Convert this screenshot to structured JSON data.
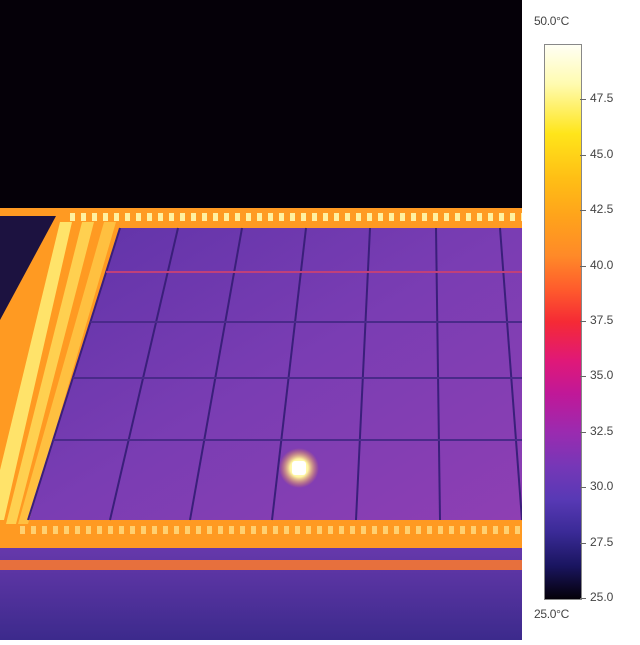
{
  "scale": {
    "max_label": "50.0°C",
    "min_label": "25.0°C",
    "range": [
      25.0,
      50.0
    ],
    "ticks": [
      "47.5",
      "45.0",
      "42.5",
      "40.0",
      "37.5",
      "35.0",
      "32.5",
      "30.0",
      "27.5",
      "25.0"
    ]
  },
  "colors": {
    "background": "#050008",
    "frame_hot": "#ffb020",
    "panel_cell": "#7a3cb0",
    "hot_spot": "#ffffff"
  }
}
